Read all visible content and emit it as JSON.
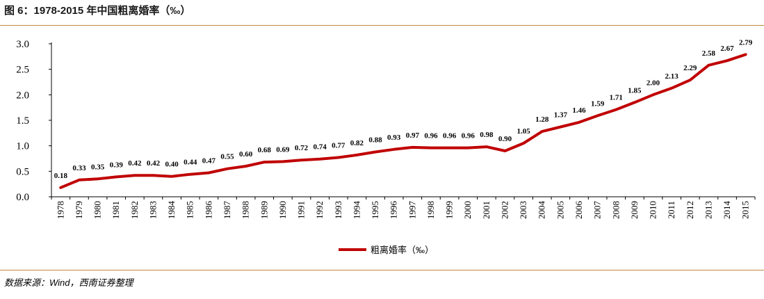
{
  "figure": {
    "title": "图 6：1978-2015 年中国粗离婚率（‰）",
    "source": "数据来源：Wind，西南证券整理",
    "line_color": "#c00000",
    "rule_color": "#c0893a"
  },
  "chart_data": {
    "type": "line",
    "title": "",
    "xlabel": "",
    "ylabel": "",
    "ylim": [
      0,
      3.0
    ],
    "yticks": [
      "0.0",
      "0.5",
      "1.0",
      "1.5",
      "2.0",
      "2.5",
      "3.0"
    ],
    "grid": false,
    "legend_position": "bottom",
    "categories": [
      "1978",
      "1979",
      "1980",
      "1981",
      "1982",
      "1983",
      "1984",
      "1985",
      "1986",
      "1987",
      "1988",
      "1989",
      "1990",
      "1991",
      "1992",
      "1993",
      "1994",
      "1995",
      "1996",
      "1997",
      "1998",
      "1999",
      "2000",
      "2001",
      "2002",
      "2003",
      "2004",
      "2005",
      "2006",
      "2007",
      "2008",
      "2009",
      "2010",
      "2011",
      "2012",
      "2013",
      "2014",
      "2015"
    ],
    "series": [
      {
        "name": "粗离婚率（‰）",
        "values": [
          0.18,
          0.33,
          0.35,
          0.39,
          0.42,
          0.42,
          0.4,
          0.44,
          0.47,
          0.55,
          0.6,
          0.68,
          0.69,
          0.72,
          0.74,
          0.77,
          0.82,
          0.88,
          0.93,
          0.97,
          0.96,
          0.96,
          0.96,
          0.98,
          0.9,
          1.05,
          1.28,
          1.37,
          1.46,
          1.59,
          1.71,
          1.85,
          2.0,
          2.13,
          2.29,
          2.58,
          2.67,
          2.79
        ],
        "labels": [
          "0.18",
          "0.33",
          "0.35",
          "0.39",
          "0.42",
          "0.42",
          "0.40",
          "0.44",
          "0.47",
          "0.55",
          "0.60",
          "0.68",
          "0.69",
          "0.72",
          "0.74",
          "0.77",
          "0.82",
          "0.88",
          "0.93",
          "0.97",
          "0.96",
          "0.96",
          "0.96",
          "0.98",
          "0.90",
          "1.05",
          "1.28",
          "1.37",
          "1.46",
          "1.59",
          "1.71",
          "1.85",
          "2.00",
          "2.13",
          "2.29",
          "2.58",
          "2.67",
          "2.79"
        ]
      }
    ]
  }
}
